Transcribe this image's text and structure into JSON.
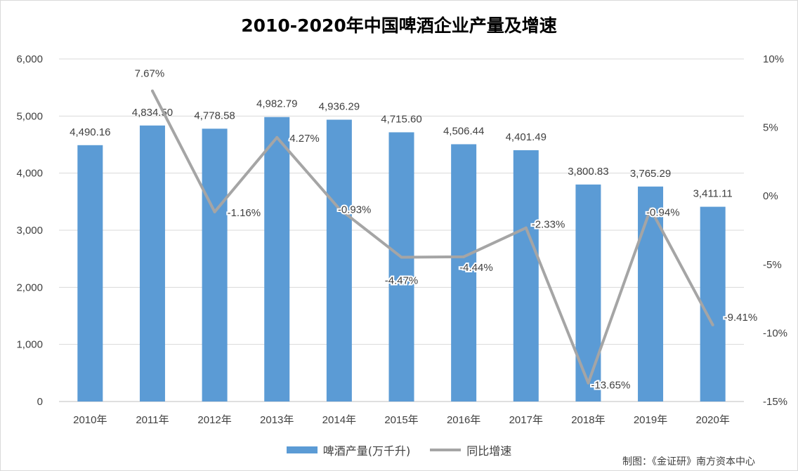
{
  "chart_data": {
    "type": "bar",
    "title": "2010-2020年中国啤酒企业产量及增速",
    "categories": [
      "2010年",
      "2011年",
      "2012年",
      "2013年",
      "2014年",
      "2015年",
      "2016年",
      "2017年",
      "2018年",
      "2019年",
      "2020年"
    ],
    "series": [
      {
        "name": "啤酒产量(万千升)",
        "type": "bar",
        "axis": "left",
        "color": "#5b9bd5",
        "values": [
          4490.16,
          4834.5,
          4778.58,
          4982.79,
          4936.29,
          4715.6,
          4506.44,
          4401.49,
          3800.83,
          3765.29,
          3411.11
        ],
        "labels": [
          "4,490.16",
          "4,834.50",
          "4,778.58",
          "4,982.79",
          "4,936.29",
          "4,715.60",
          "4,506.44",
          "4,401.49",
          "3,800.83",
          "3,765.29",
          "3,411.11"
        ]
      },
      {
        "name": "同比增速",
        "type": "line",
        "axis": "right",
        "color": "#a5a5a5",
        "values": [
          null,
          7.67,
          -1.16,
          4.27,
          -0.93,
          -4.47,
          -4.44,
          -2.33,
          -13.65,
          -0.94,
          -9.41
        ],
        "labels": [
          "",
          "7.67%",
          "-1.16%",
          "4.27%",
          "-0.93%",
          "-4.47%",
          "-4.44%",
          "-2.33%",
          "-13.65%",
          "-0.94%",
          "-9.41%"
        ]
      }
    ],
    "y_left": {
      "ylim": [
        0,
        6000
      ],
      "ticks": [
        0,
        1000,
        2000,
        3000,
        4000,
        5000,
        6000
      ],
      "tick_labels": [
        "0",
        "1,000",
        "2,000",
        "3,000",
        "4,000",
        "5,000",
        "6,000"
      ]
    },
    "y_right": {
      "ylim": [
        -15,
        10
      ],
      "ticks": [
        -15,
        -10,
        -5,
        0,
        5,
        10
      ],
      "tick_labels": [
        "-15%",
        "-10%",
        "-5%",
        "0%",
        "5%",
        "10%"
      ]
    },
    "grid": true,
    "legend_position": "bottom"
  },
  "legend": {
    "bar_label": "啤酒产量(万千升)",
    "line_label": "同比增速"
  },
  "source_note": "制图：《金证研》南方资本中心"
}
